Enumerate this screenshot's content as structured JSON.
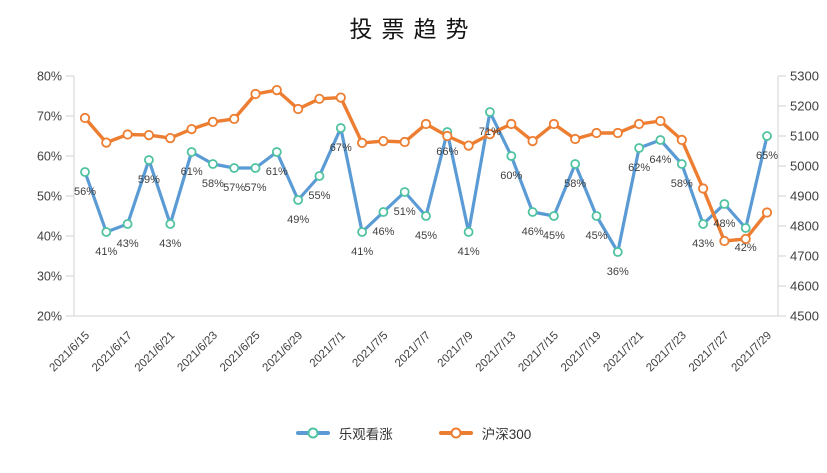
{
  "title": "投票趋势",
  "chart_data": {
    "type": "line",
    "title": "投票趋势",
    "categories": [
      "2021/6/15",
      "2021/6/16",
      "2021/6/17",
      "2021/6/18",
      "2021/6/21",
      "2021/6/22",
      "2021/6/23",
      "2021/6/24",
      "2021/6/25",
      "2021/6/28",
      "2021/6/29",
      "2021/6/30",
      "2021/7/1",
      "2021/7/2",
      "2021/7/5",
      "2021/7/6",
      "2021/7/7",
      "2021/7/8",
      "2021/7/9",
      "2021/7/12",
      "2021/7/13",
      "2021/7/14",
      "2021/7/15",
      "2021/7/16",
      "2021/7/19",
      "2021/7/20",
      "2021/7/21",
      "2021/7/22",
      "2021/7/23",
      "2021/7/26",
      "2021/7/27",
      "2021/7/28",
      "2021/7/29"
    ],
    "x_axis_tick_labels": [
      "2021/6/15",
      "2021/6/17",
      "2021/6/21",
      "2021/6/23",
      "2021/6/25",
      "2021/6/29",
      "2021/7/1",
      "2021/7/5",
      "2021/7/7",
      "2021/7/9",
      "2021/7/13",
      "2021/7/15",
      "2021/7/19",
      "2021/7/21",
      "2021/7/23",
      "2021/7/27",
      "2021/7/29"
    ],
    "series": [
      {
        "name": "乐观看涨",
        "axis": "left",
        "unit": "%",
        "color": "#5B9BD5",
        "marker_stroke": "#4FC3A1",
        "values": [
          56,
          41,
          43,
          59,
          43,
          61,
          58,
          57,
          57,
          61,
          49,
          55,
          67,
          41,
          46,
          51,
          45,
          66,
          41,
          71,
          60,
          46,
          45,
          58,
          45,
          36,
          62,
          64,
          58,
          43,
          48,
          42,
          65
        ],
        "data_labels": [
          "56%",
          "41%",
          "43%",
          "59%",
          "43%",
          "61%",
          "58%",
          "57%",
          "57%",
          "61%",
          "49%",
          "55%",
          "67%",
          "41%",
          "46%",
          "51%",
          "45%",
          "66%",
          "41%",
          "71%",
          "60%",
          "46%",
          "45%",
          "58%",
          "45%",
          "36%",
          "62%",
          "64%",
          "58%",
          "43%",
          "48%",
          "42%",
          "65%"
        ]
      },
      {
        "name": "沪深300",
        "axis": "right",
        "unit": "",
        "color": "#ED7D31",
        "marker_stroke": "#ED7D31",
        "values": [
          5160,
          5078,
          5105,
          5103,
          5093,
          5123,
          5147,
          5157,
          5240,
          5253,
          5190,
          5224,
          5228,
          5077,
          5083,
          5080,
          5140,
          5100,
          5068,
          5106,
          5140,
          5083,
          5140,
          5090,
          5110,
          5110,
          5140,
          5150,
          5087,
          4925,
          4750,
          4757,
          4845
        ]
      }
    ],
    "left_axis": {
      "min": 20,
      "max": 80,
      "step": 10,
      "unit": "%",
      "tick_labels": [
        "80%",
        "70%",
        "60%",
        "50%",
        "40%",
        "30%",
        "20%"
      ]
    },
    "right_axis": {
      "min": 4500,
      "max": 5300,
      "step": 100,
      "tick_labels": [
        "5300",
        "5200",
        "5100",
        "5000",
        "4900",
        "4800",
        "4700",
        "4600",
        "4500"
      ]
    },
    "grid": false,
    "legend_position": "bottom",
    "axis_line_color": "#D9D9D9",
    "label_color": "#404040"
  }
}
